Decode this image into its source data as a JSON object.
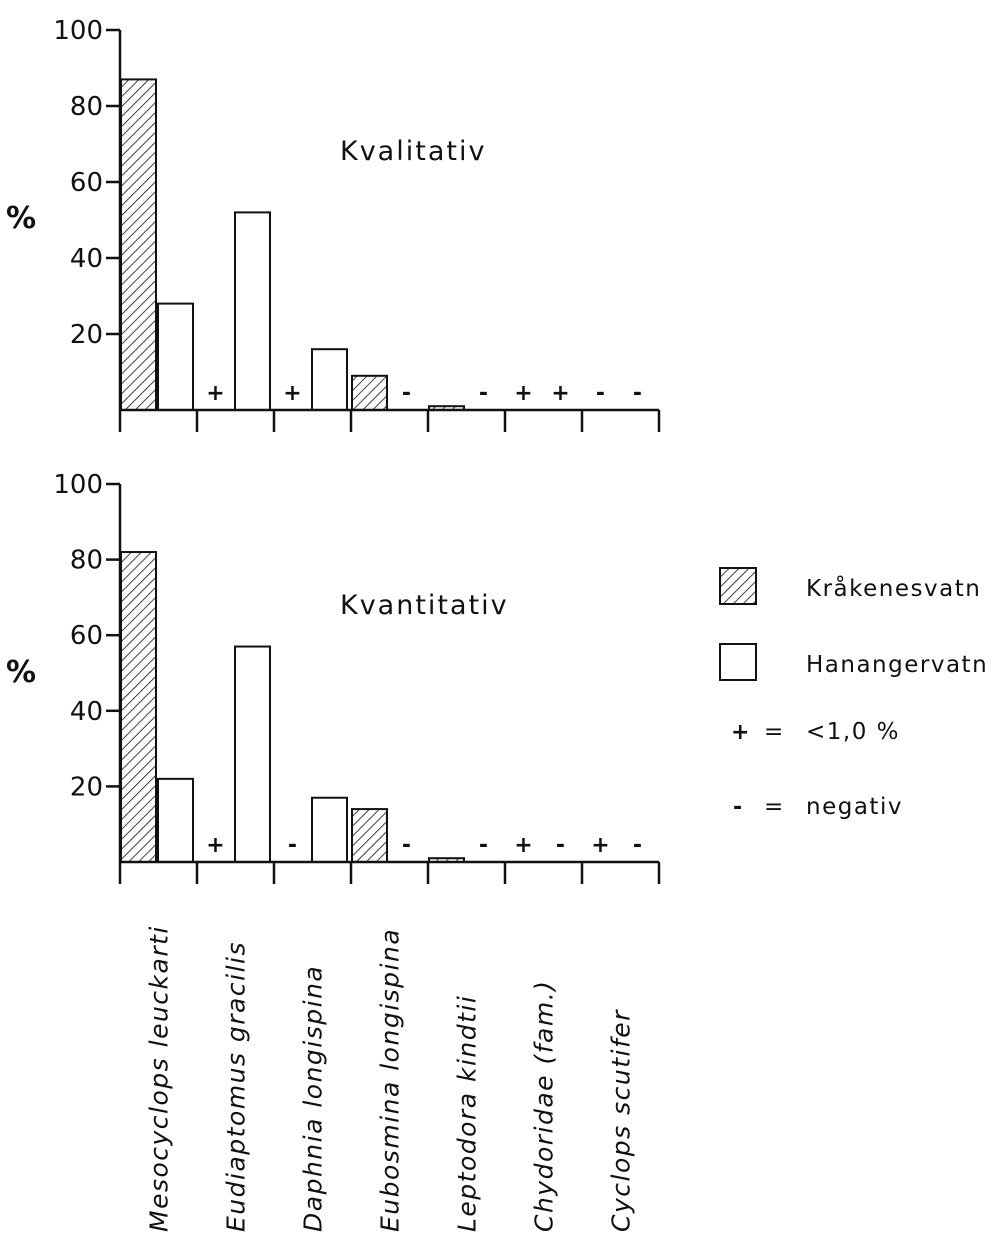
{
  "chart_data": {
    "type": "bar",
    "categories": [
      "Mesocyclops leuckarti",
      "Eudiaptomus gracilis",
      "Daphnia longispina",
      "Eubosmina longispina",
      "Leptodora kindtii",
      "Chydoridae (fam.)",
      "Cyclops scutifer"
    ],
    "ylim": [
      0,
      100
    ],
    "y_ticks": [
      "100",
      "80",
      "60",
      "40",
      "20"
    ],
    "ylabel": "%",
    "grid": false,
    "legend_position": "right",
    "panels": [
      {
        "title": "Kvalitativ",
        "series": [
          {
            "name": "Kråkenesvatn",
            "values": [
              87,
              null,
              null,
              9,
              1,
              null,
              null
            ],
            "markers": [
              null,
              "+",
              "+",
              null,
              null,
              "+",
              "-"
            ]
          },
          {
            "name": "Hanangervatn",
            "values": [
              28,
              52,
              16,
              null,
              null,
              null,
              null
            ],
            "markers": [
              null,
              null,
              null,
              "-",
              "-",
              "+",
              "-"
            ]
          }
        ]
      },
      {
        "title": "Kvantitativ",
        "series": [
          {
            "name": "Kråkenesvatn",
            "values": [
              82,
              null,
              null,
              14,
              1,
              null,
              null
            ],
            "markers": [
              null,
              "+",
              "-",
              null,
              null,
              "+",
              "+"
            ]
          },
          {
            "name": "Hanangervatn",
            "values": [
              22,
              57,
              17,
              null,
              null,
              null,
              null
            ],
            "markers": [
              null,
              null,
              null,
              "-",
              "-",
              "-",
              "-"
            ]
          }
        ]
      }
    ],
    "legend": {
      "series": [
        {
          "name": "Kråkenesvatn",
          "pattern": "hatched"
        },
        {
          "name": "Hanangervatn",
          "pattern": "open"
        }
      ],
      "notes": [
        {
          "symbol": "+",
          "text": "<1,0 %"
        },
        {
          "symbol": "-",
          "text": "negativ"
        }
      ]
    },
    "colors": {
      "ink": "#111111",
      "fill_open": "#ffffff"
    }
  }
}
